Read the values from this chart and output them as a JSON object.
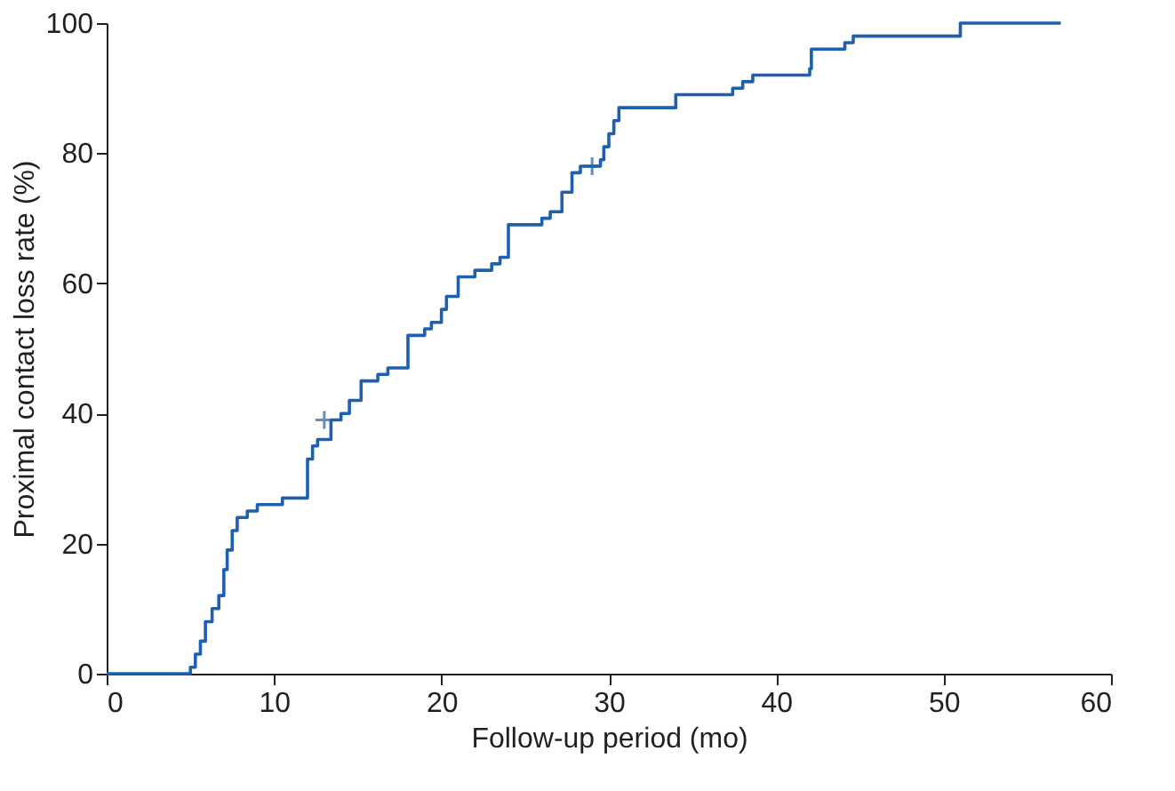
{
  "chart_data": {
    "type": "step",
    "xlabel": "Follow-up period (mo)",
    "ylabel": "Proximal contact loss rate (%)",
    "xlim": [
      0,
      60
    ],
    "xticks": [
      0,
      10,
      20,
      30,
      40,
      50,
      60
    ],
    "ylim": [
      0,
      100
    ],
    "yticks": [
      0,
      20,
      40,
      60,
      80,
      100
    ],
    "grid": false,
    "series": [
      {
        "color": "#1f5fb0",
        "marker": "none",
        "x": [
          0,
          5.0,
          5.3,
          5.6,
          5.9,
          6.3,
          6.7,
          7.0,
          7.2,
          7.5,
          7.8,
          8.4,
          9.0,
          10.5,
          12.0,
          12.3,
          12.6,
          13.4,
          14.0,
          14.5,
          15.2,
          16.2,
          16.8,
          18.0,
          19.0,
          19.4,
          20.0,
          20.3,
          21.0,
          22.0,
          23.0,
          23.5,
          24.0,
          26.0,
          26.5,
          27.2,
          27.8,
          28.3,
          29.5,
          29.7,
          30.0,
          30.3,
          30.6,
          34.0,
          37.4,
          38.0,
          38.6,
          42.0,
          42.1,
          44.1,
          44.6,
          51.0,
          57.0
        ],
        "values": [
          0,
          1,
          3,
          5,
          8,
          10,
          12,
          16,
          19,
          22,
          24,
          25,
          26,
          27,
          33,
          35,
          36,
          39,
          40,
          42,
          45,
          46,
          47,
          52,
          53,
          54,
          56,
          58,
          61,
          62,
          63,
          64,
          69,
          70,
          71,
          74,
          77,
          78,
          79,
          81,
          83,
          85,
          87,
          89,
          90,
          91,
          92,
          93,
          96,
          97,
          98,
          100,
          100
        ]
      },
      {
        "type": "scatter",
        "color": "#1f5fb0",
        "marker": "cross",
        "x": [
          13.0,
          29.0
        ],
        "values": [
          39,
          78
        ]
      }
    ]
  }
}
